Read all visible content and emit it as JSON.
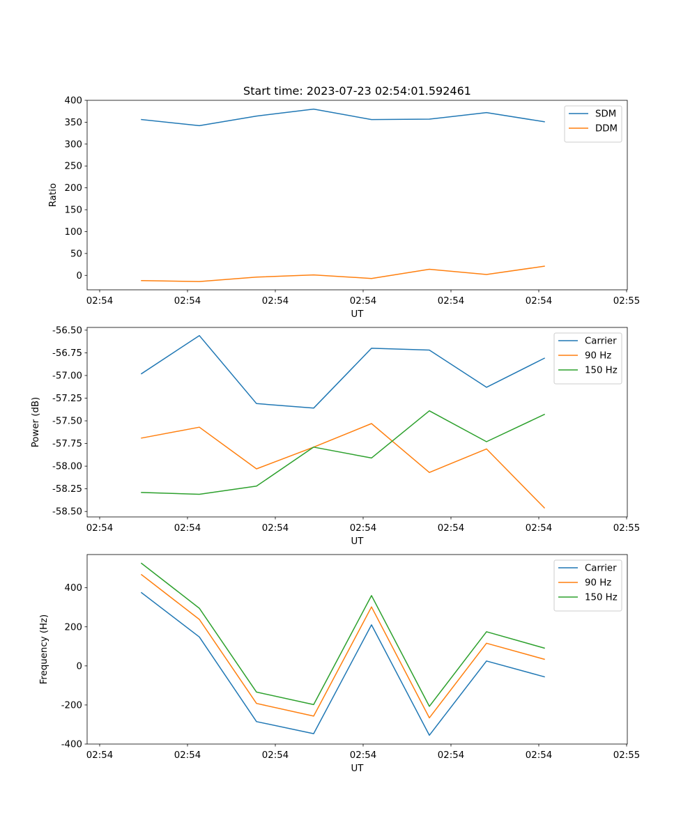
{
  "chart_data": [
    {
      "type": "line",
      "id": "ratio",
      "title": "Start time: 2023-07-23 02:54:01.592461",
      "xlabel": "UT",
      "ylabel": "Ratio",
      "xticks": [
        "02:54",
        "02:54",
        "02:54",
        "02:54",
        "02:54",
        "02:54",
        "02:54"
      ],
      "x_last_tick": "02:55",
      "ylim": [
        -33,
        400
      ],
      "yticks": [
        0,
        50,
        100,
        150,
        200,
        250,
        300,
        350,
        400
      ],
      "legend_position": "upper right",
      "series": [
        {
          "name": "SDM",
          "color": "#1f77b4",
          "values": [
            356,
            342,
            364,
            380,
            356,
            357,
            372,
            351
          ]
        },
        {
          "name": "DDM",
          "color": "#ff7f0e",
          "values": [
            -12,
            -14,
            -4,
            1,
            -7,
            14,
            2,
            21
          ]
        }
      ]
    },
    {
      "type": "line",
      "id": "power",
      "title": "",
      "xlabel": "UT",
      "ylabel": "Power (dB)",
      "xticks": [
        "02:54",
        "02:54",
        "02:54",
        "02:54",
        "02:54",
        "02:54",
        "02:54"
      ],
      "x_last_tick": "02:55",
      "ylim": [
        -58.56,
        -56.47
      ],
      "yticks": [
        "-58.50",
        "-58.25",
        "-58.00",
        "-57.75",
        "-57.50",
        "-57.25",
        "-57.00",
        "-56.75",
        "-56.50"
      ],
      "legend_position": "upper right",
      "series": [
        {
          "name": "Carrier",
          "color": "#1f77b4",
          "values": [
            -56.98,
            -56.56,
            -57.31,
            -57.36,
            -56.7,
            -56.72,
            -57.13,
            -56.81
          ]
        },
        {
          "name": "90 Hz",
          "color": "#ff7f0e",
          "values": [
            -57.69,
            -57.57,
            -58.03,
            -57.79,
            -57.53,
            -58.07,
            -57.81,
            -58.46
          ]
        },
        {
          "name": "150 Hz",
          "color": "#2ca02c",
          "values": [
            -58.29,
            -58.31,
            -58.22,
            -57.79,
            -57.91,
            -57.39,
            -57.73,
            -57.43
          ]
        }
      ]
    },
    {
      "type": "line",
      "id": "frequency",
      "title": "",
      "xlabel": "UT",
      "ylabel": "Frequency (Hz)",
      "xticks": [
        "02:54",
        "02:54",
        "02:54",
        "02:54",
        "02:54",
        "02:54",
        "02:54"
      ],
      "x_last_tick": "02:55",
      "ylim": [
        -400,
        570
      ],
      "yticks": [
        -400,
        -200,
        0,
        200,
        400
      ],
      "legend_position": "upper right",
      "series": [
        {
          "name": "Carrier",
          "color": "#1f77b4",
          "values": [
            375,
            148,
            -285,
            -347,
            210,
            -355,
            25,
            -56
          ]
        },
        {
          "name": "90 Hz",
          "color": "#ff7f0e",
          "values": [
            467,
            238,
            -192,
            -257,
            302,
            -266,
            116,
            34
          ]
        },
        {
          "name": "150 Hz",
          "color": "#2ca02c",
          "values": [
            525,
            295,
            -134,
            -198,
            360,
            -207,
            175,
            91
          ]
        }
      ]
    }
  ]
}
